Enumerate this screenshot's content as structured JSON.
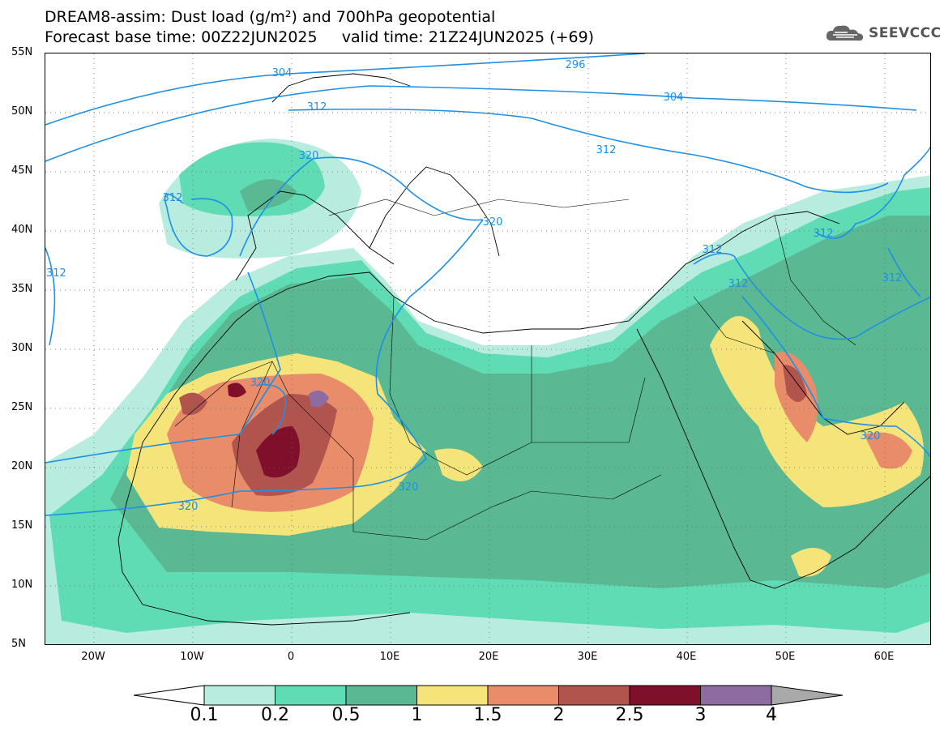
{
  "title": {
    "line1": "DREAM8-assim: Dust load (g/m²) and 700hPa geopotential",
    "line2": "Forecast base time: 00Z22JUN2025     valid time: 21Z24JUN2025 (+69)"
  },
  "logo": {
    "text": "SEEVCCC",
    "icon": "cloud-icon"
  },
  "axes": {
    "lat_labels": [
      "55N",
      "50N",
      "45N",
      "40N",
      "35N",
      "30N",
      "25N",
      "20N",
      "15N",
      "10N",
      "5N"
    ],
    "lon_labels": [
      "20W",
      "10W",
      "0",
      "10E",
      "20E",
      "30E",
      "40E",
      "50E",
      "60E"
    ]
  },
  "contours": {
    "color": "#1e90e6",
    "labels": [
      "296",
      "304",
      "304",
      "312",
      "312",
      "312",
      "312",
      "312",
      "312",
      "312",
      "320",
      "320",
      "320",
      "320",
      "320",
      "320"
    ]
  },
  "colorbar": {
    "thresholds": [
      "0.1",
      "0.2",
      "0.5",
      "1",
      "1.5",
      "2",
      "2.5",
      "3",
      "4"
    ],
    "colors": [
      "#ffffff",
      "#b8ecdf",
      "#5fdcb3",
      "#5ab992",
      "#f5e47a",
      "#e98c6a",
      "#b2544e",
      "#7f0f2a",
      "#8e6ba0",
      "#a9a9a9"
    ]
  }
}
